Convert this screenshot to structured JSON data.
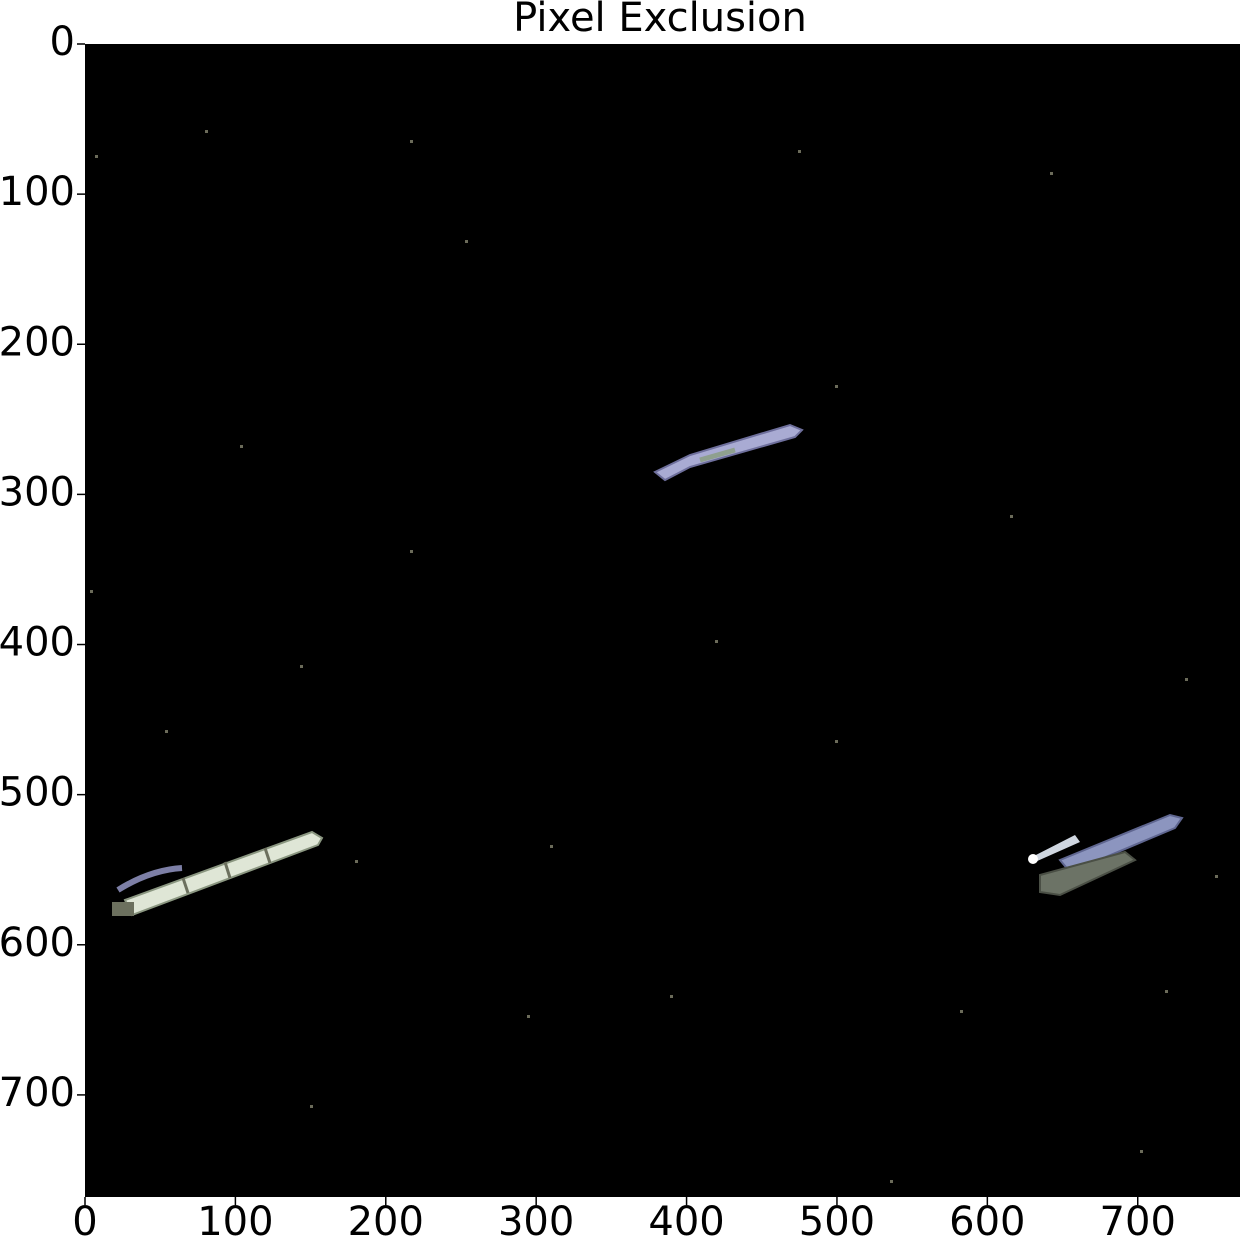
{
  "chart_data": {
    "type": "image",
    "title": "Pixel Exclusion",
    "xlim": [
      0,
      768
    ],
    "ylim": [
      768,
      0
    ],
    "xticks": [
      0,
      100,
      200,
      300,
      400,
      500,
      600,
      700
    ],
    "yticks": [
      0,
      100,
      200,
      300,
      400,
      500,
      600,
      700
    ]
  }
}
